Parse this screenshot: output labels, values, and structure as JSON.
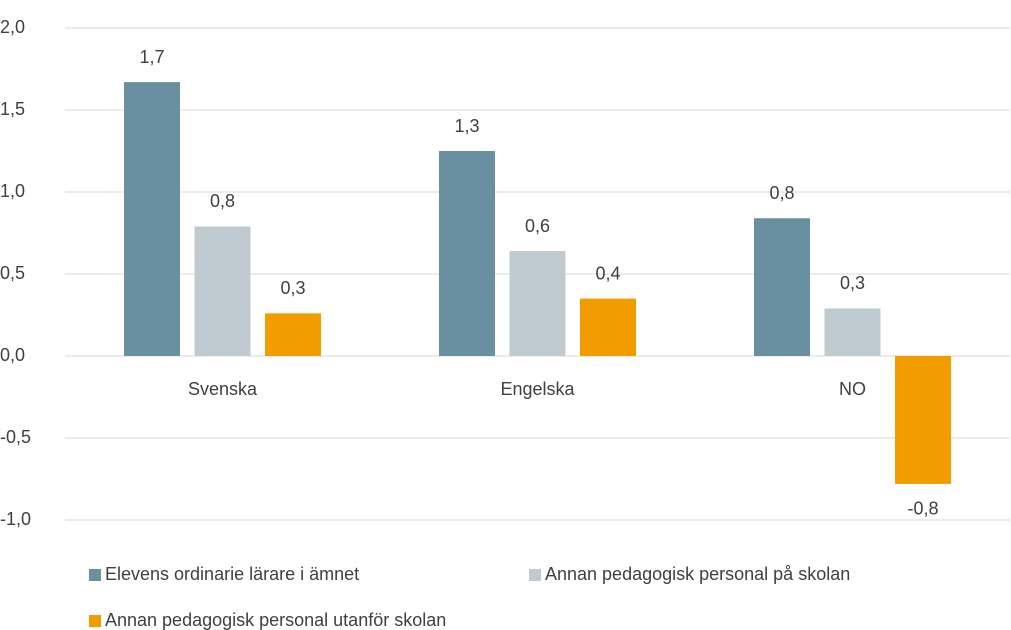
{
  "chart_data": {
    "type": "bar",
    "categories": [
      "Svenska",
      "Engelska",
      "NO"
    ],
    "series": [
      {
        "name": "Elevens ordinarie lärare i ämnet",
        "color": "#6890a0",
        "values": [
          1.67,
          1.25,
          0.84
        ],
        "value_labels": [
          "1,7",
          "1,3",
          "0,8"
        ]
      },
      {
        "name": "Annan pedagogisk personal på skolan",
        "color": "#bfcbd0",
        "values": [
          0.79,
          0.64,
          0.29
        ],
        "value_labels": [
          "0,8",
          "0,6",
          "0,3"
        ]
      },
      {
        "name": "Annan pedagogisk personal utanför skolan",
        "color": "#f39c00",
        "values": [
          0.26,
          0.35,
          -0.78
        ],
        "value_labels": [
          "0,3",
          "0,4",
          "-0,8"
        ]
      }
    ],
    "ylim": [
      -1.0,
      2.0
    ],
    "yticks": [
      {
        "value": -1.0,
        "label": "-1,0"
      },
      {
        "value": -0.5,
        "label": "-0,5"
      },
      {
        "value": 0,
        "label": "0,0"
      },
      {
        "value": 0.5,
        "label": "0,5"
      },
      {
        "value": 1.0,
        "label": "1,0"
      },
      {
        "value": 1.5,
        "label": "1,5"
      },
      {
        "value": 2.0,
        "label": "2,0"
      }
    ],
    "grid": true
  }
}
